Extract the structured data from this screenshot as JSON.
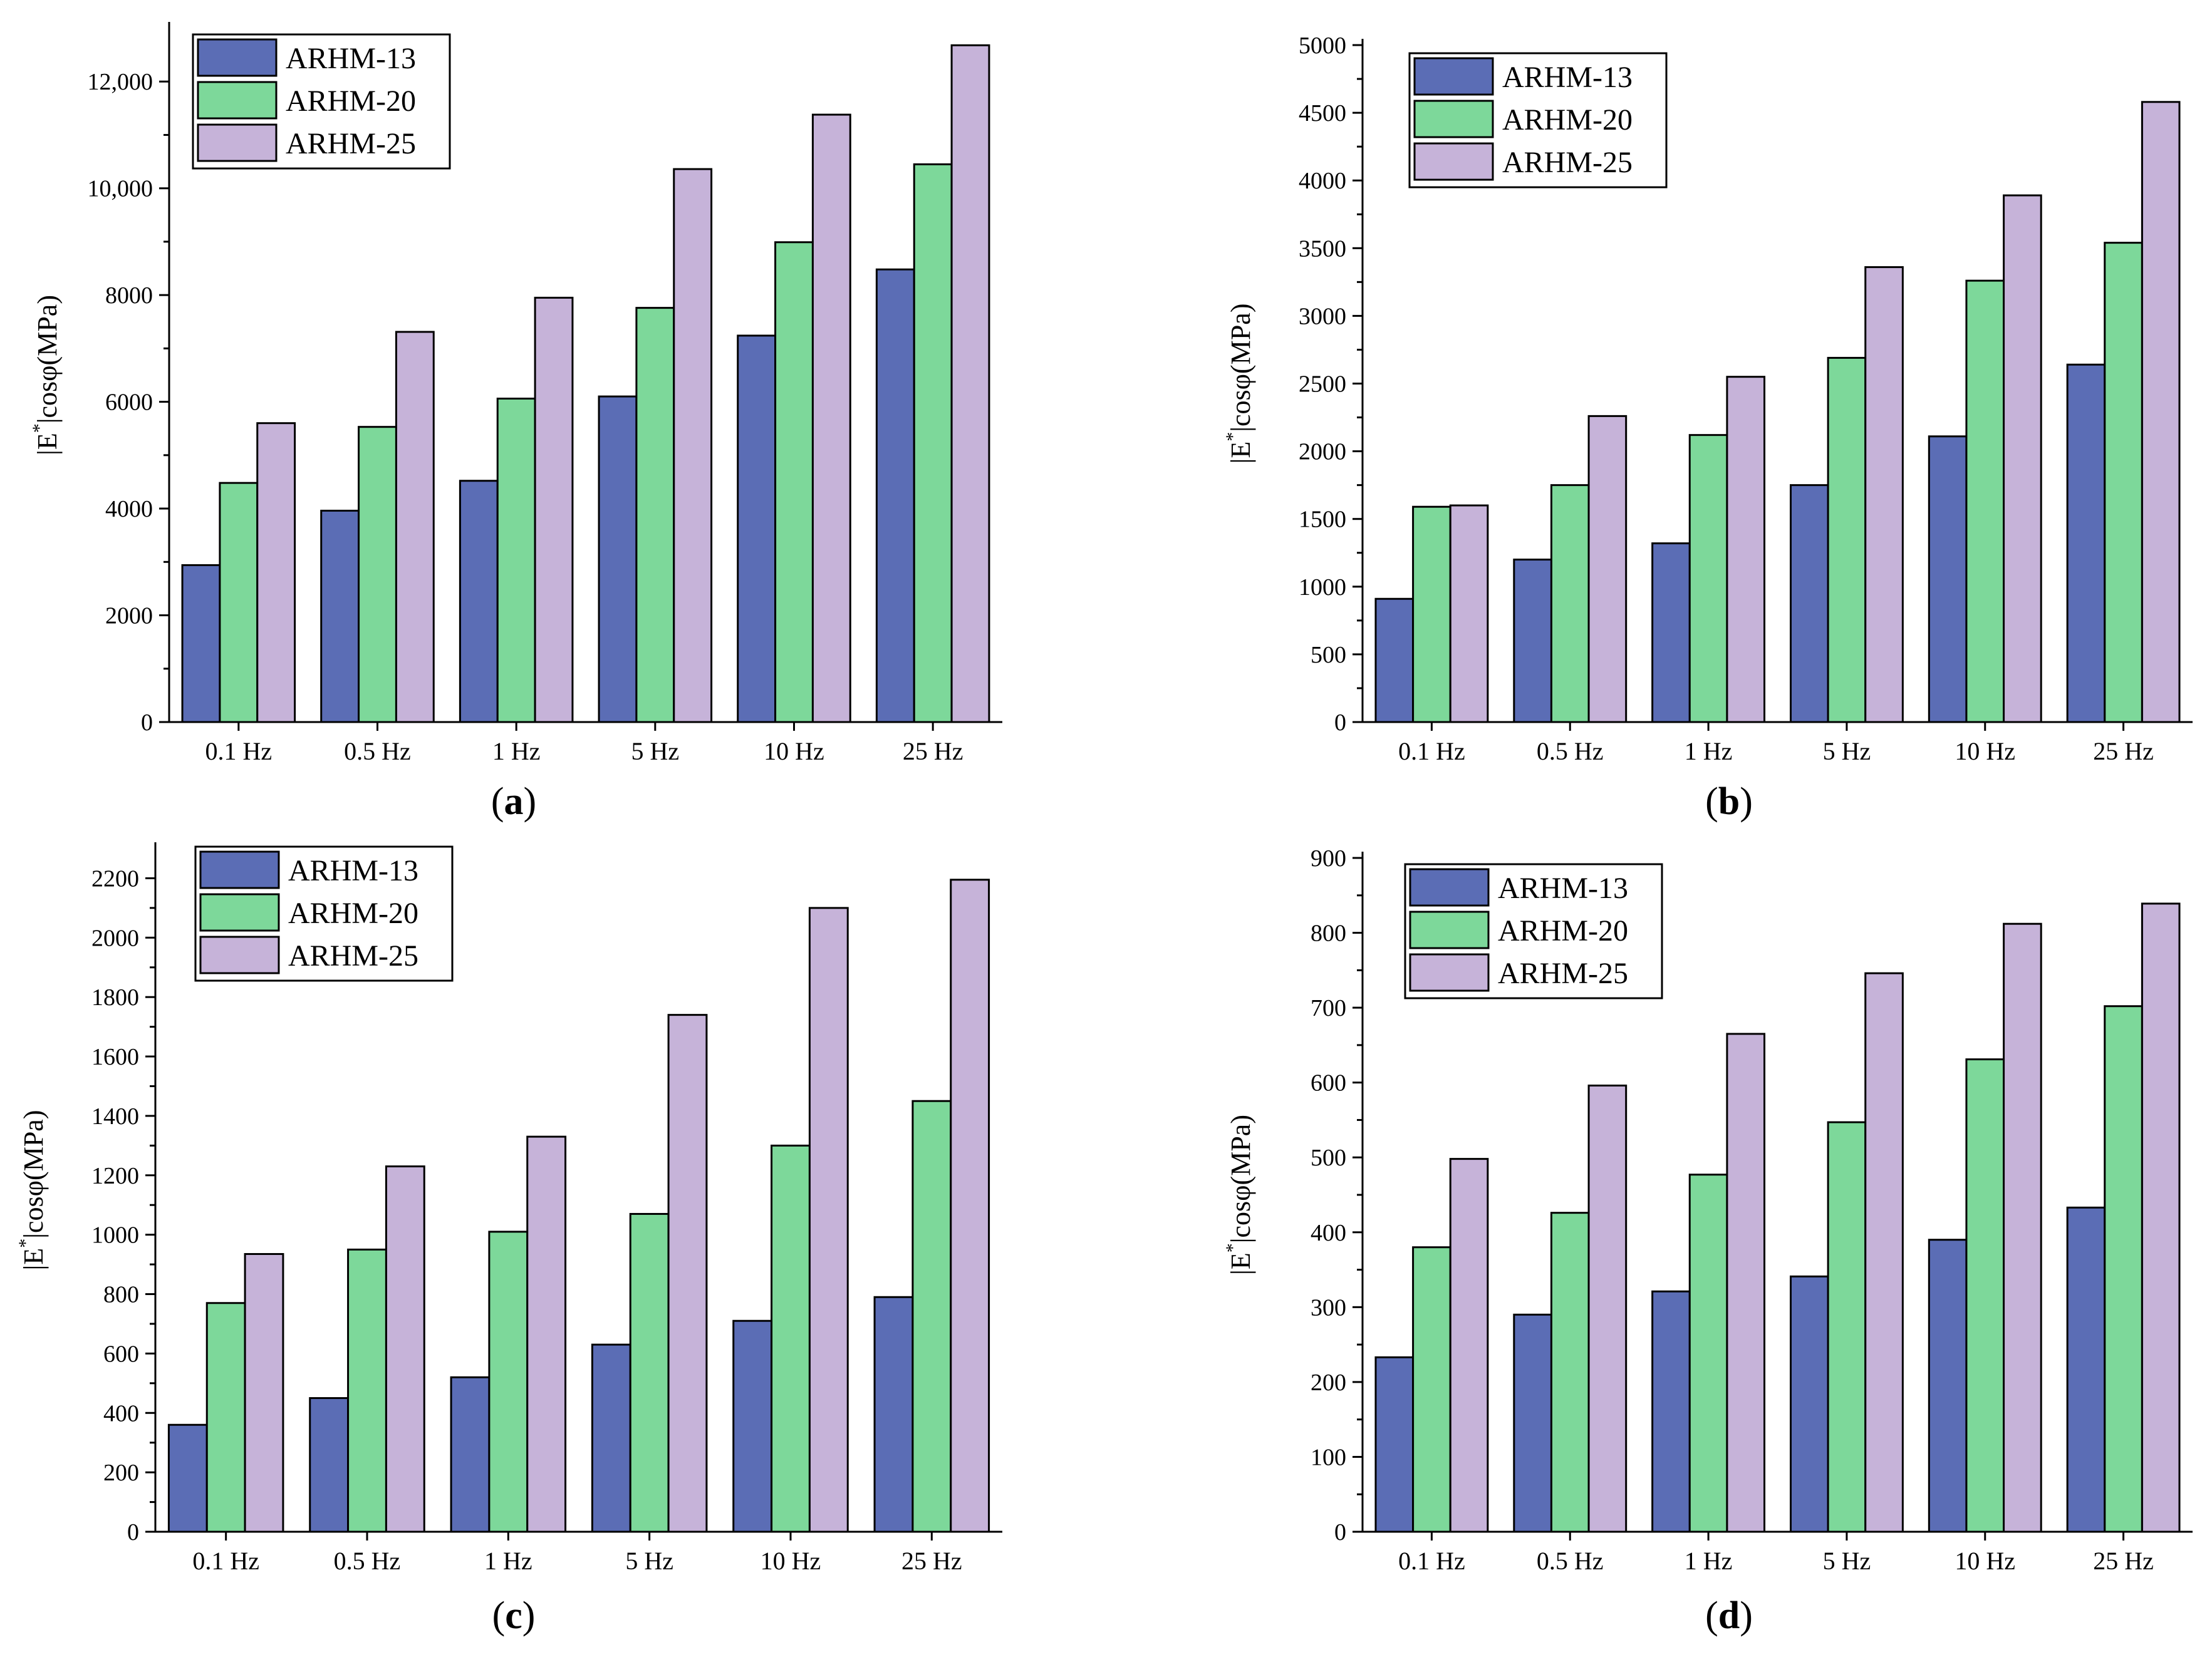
{
  "chart_data": [
    {
      "panel": "(a)",
      "type": "bar",
      "categories": [
        "0.1 Hz",
        "0.5 Hz",
        "1 Hz",
        "5 Hz",
        "10 Hz",
        "25 Hz"
      ],
      "series": [
        {
          "name": "ARHM-13",
          "color": "#5b6db5",
          "values": [
            2940,
            3960,
            4520,
            6100,
            7240,
            8480
          ]
        },
        {
          "name": "ARHM-20",
          "color": "#7dd89a",
          "values": [
            4480,
            5530,
            6060,
            7760,
            8990,
            10450
          ]
        },
        {
          "name": "ARHM-25",
          "color": "#c6b3d9",
          "values": [
            5600,
            7310,
            7950,
            10360,
            11380,
            12680
          ]
        }
      ],
      "ylabel": "|E*|cosφ(MPa)",
      "ylim": [
        0,
        13000
      ],
      "yticks": [
        0,
        2000,
        4000,
        6000,
        8000,
        10000,
        12000
      ],
      "ytick_labels": [
        "0",
        "2000",
        "4000",
        "6000",
        "8000",
        "10,000",
        "12,000"
      ],
      "legend": "top-left",
      "grid": false
    },
    {
      "panel": "(b)",
      "type": "bar",
      "categories": [
        "0.1 Hz",
        "0.5 Hz",
        "1 Hz",
        "5 Hz",
        "10 Hz",
        "25 Hz"
      ],
      "series": [
        {
          "name": "ARHM-13",
          "color": "#5b6db5",
          "values": [
            910,
            1200,
            1320,
            1750,
            2110,
            2640
          ]
        },
        {
          "name": "ARHM-20",
          "color": "#7dd89a",
          "values": [
            1590,
            1750,
            2120,
            2690,
            3260,
            3540
          ]
        },
        {
          "name": "ARHM-25",
          "color": "#c6b3d9",
          "values": [
            1600,
            2260,
            2550,
            3360,
            3890,
            4580
          ]
        }
      ],
      "ylabel": "|E*|cosφ(MPa)",
      "ylim": [
        0,
        5000
      ],
      "yticks": [
        0,
        500,
        1000,
        1500,
        2000,
        2500,
        3000,
        3500,
        4000,
        4500,
        5000
      ],
      "ytick_labels": [
        "0",
        "500",
        "1000",
        "1500",
        "2000",
        "2500",
        "3000",
        "3500",
        "4000",
        "4500",
        "5000"
      ],
      "legend": "top-left",
      "grid": false
    },
    {
      "panel": "(c)",
      "type": "bar",
      "categories": [
        "0.1 Hz",
        "0.5 Hz",
        "1 Hz",
        "5 Hz",
        "10 Hz",
        "25 Hz"
      ],
      "series": [
        {
          "name": "ARHM-13",
          "color": "#5b6db5",
          "values": [
            360,
            450,
            520,
            630,
            710,
            790
          ]
        },
        {
          "name": "ARHM-20",
          "color": "#7dd89a",
          "values": [
            770,
            950,
            1010,
            1070,
            1300,
            1450
          ]
        },
        {
          "name": "ARHM-25",
          "color": "#c6b3d9",
          "values": [
            935,
            1230,
            1330,
            1740,
            2100,
            2195
          ]
        }
      ],
      "ylabel": "|E*|cosφ(MPa)",
      "ylim": [
        0,
        2300
      ],
      "yticks": [
        0,
        200,
        400,
        600,
        800,
        1000,
        1200,
        1400,
        1600,
        1800,
        2000,
        2200
      ],
      "ytick_labels": [
        "0",
        "200",
        "400",
        "600",
        "800",
        "1000",
        "1200",
        "1400",
        "1600",
        "1800",
        "2000",
        "2200"
      ],
      "legend": "top-left",
      "grid": false
    },
    {
      "panel": "(d)",
      "type": "bar",
      "categories": [
        "0.1 Hz",
        "0.5 Hz",
        "1 Hz",
        "5 Hz",
        "10 Hz",
        "25 Hz"
      ],
      "series": [
        {
          "name": "ARHM-13",
          "color": "#5b6db5",
          "values": [
            233,
            290,
            321,
            341,
            390,
            433
          ]
        },
        {
          "name": "ARHM-20",
          "color": "#7dd89a",
          "values": [
            380,
            426,
            477,
            547,
            631,
            702
          ]
        },
        {
          "name": "ARHM-25",
          "color": "#c6b3d9",
          "values": [
            498,
            596,
            665,
            746,
            812,
            839
          ]
        }
      ],
      "ylabel": "|E*|cosφ(MPa)",
      "ylim": [
        0,
        900
      ],
      "yticks": [
        0,
        100,
        200,
        300,
        400,
        500,
        600,
        700,
        800,
        900
      ],
      "ytick_labels": [
        "0",
        "100",
        "200",
        "300",
        "400",
        "500",
        "600",
        "700",
        "800",
        "900"
      ],
      "legend": "top-left",
      "grid": false
    }
  ]
}
